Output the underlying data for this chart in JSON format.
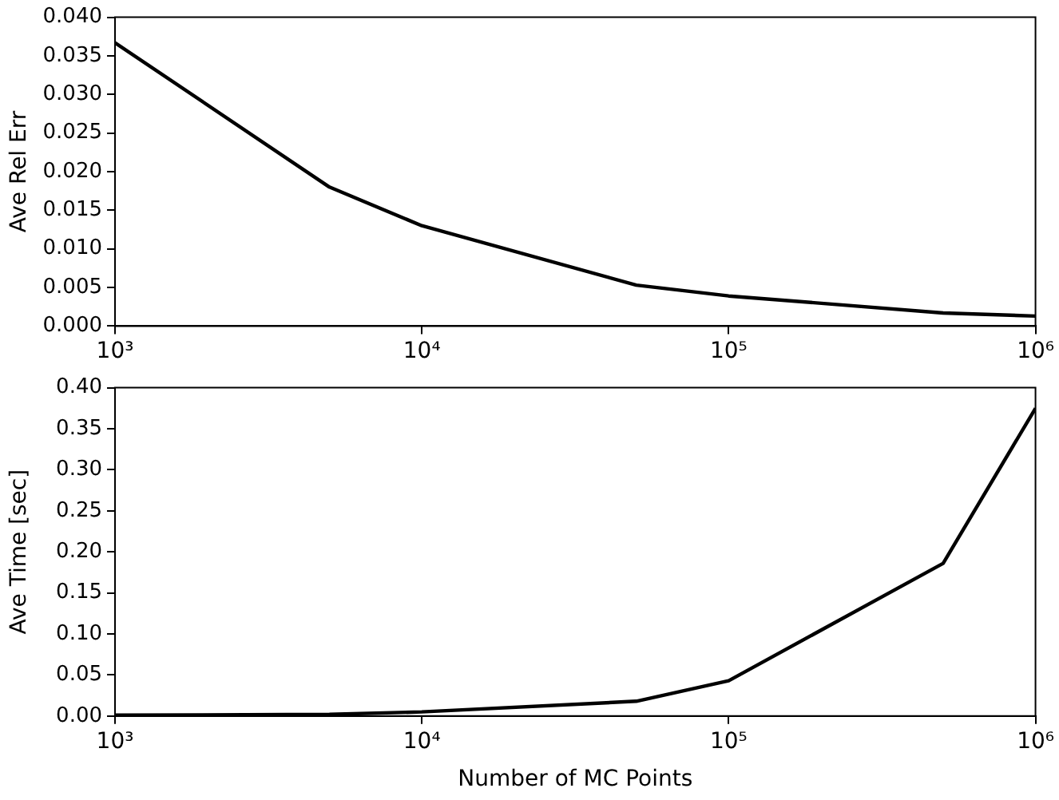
{
  "chart_data": [
    {
      "type": "line",
      "ylabel": "Ave Rel Err",
      "log": "x",
      "grid": false,
      "legend": false,
      "marker": "none",
      "line_style": "solid",
      "x": [
        1000,
        5000,
        10000,
        50000,
        100000,
        500000,
        1000000
      ],
      "series": [
        {
          "color": "#000000",
          "values": [
            0.0367,
            0.018,
            0.013,
            0.0053,
            0.0039,
            0.0017,
            0.0013
          ]
        }
      ],
      "xlim": [
        1000,
        1000000
      ],
      "xticks": [
        {
          "value": 1000,
          "label": "10³"
        },
        {
          "value": 10000,
          "label": "10⁴"
        },
        {
          "value": 100000,
          "label": "10⁵"
        },
        {
          "value": 1000000,
          "label": "10⁶"
        }
      ],
      "ylim": [
        0,
        0.04
      ],
      "yticks": [
        {
          "value": 0,
          "label": "0.000"
        },
        {
          "value": 0.005,
          "label": "0.005"
        },
        {
          "value": 0.01,
          "label": "0.010"
        },
        {
          "value": 0.015,
          "label": "0.015"
        },
        {
          "value": 0.02,
          "label": "0.020"
        },
        {
          "value": 0.025,
          "label": "0.025"
        },
        {
          "value": 0.03,
          "label": "0.030"
        },
        {
          "value": 0.035,
          "label": "0.035"
        },
        {
          "value": 0.04,
          "label": "0.040"
        }
      ]
    },
    {
      "type": "line",
      "xlabel": "Number of MC Points",
      "ylabel": "Ave Time [sec]",
      "log": "x",
      "grid": false,
      "legend": false,
      "marker": "none",
      "line_style": "solid",
      "x": [
        1000,
        5000,
        10000,
        50000,
        100000,
        500000,
        1000000
      ],
      "series": [
        {
          "color": "#000000",
          "values": [
            0.001,
            0.002,
            0.005,
            0.018,
            0.043,
            0.186,
            0.375
          ]
        }
      ],
      "xlim": [
        1000,
        1000000
      ],
      "xticks": [
        {
          "value": 1000,
          "label": "10³"
        },
        {
          "value": 10000,
          "label": "10⁴"
        },
        {
          "value": 100000,
          "label": "10⁵"
        },
        {
          "value": 1000000,
          "label": "10⁶"
        }
      ],
      "ylim": [
        0,
        0.4
      ],
      "yticks": [
        {
          "value": 0,
          "label": "0.00"
        },
        {
          "value": 0.05,
          "label": "0.05"
        },
        {
          "value": 0.1,
          "label": "0.10"
        },
        {
          "value": 0.15,
          "label": "0.15"
        },
        {
          "value": 0.2,
          "label": "0.20"
        },
        {
          "value": 0.25,
          "label": "0.25"
        },
        {
          "value": 0.3,
          "label": "0.30"
        },
        {
          "value": 0.35,
          "label": "0.35"
        },
        {
          "value": 0.4,
          "label": "0.40"
        }
      ]
    }
  ]
}
